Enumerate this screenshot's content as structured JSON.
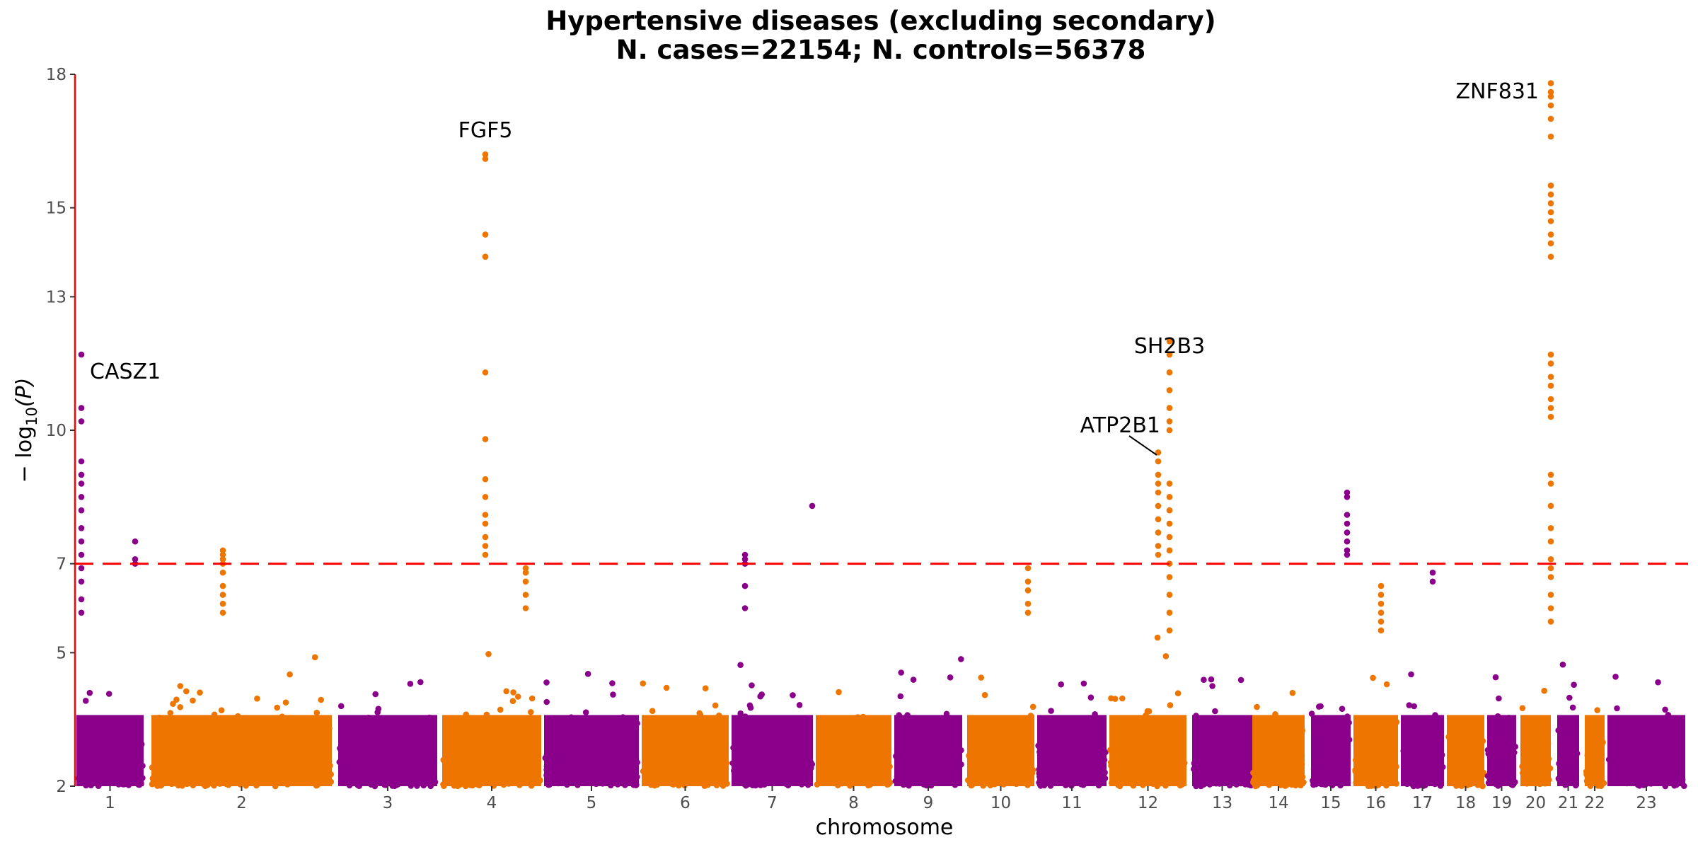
{
  "chart_data": {
    "type": "scatter",
    "subtype": "manhattan",
    "title": "Hypertensive diseases (excluding secondary)",
    "subtitle": "N. cases=22154; N. controls=56378",
    "xlabel": "chromosome",
    "ylabel_prefix": "− log",
    "ylabel_sub": "10",
    "ylabel_suffix": "(P)",
    "ylim": [
      2,
      18
    ],
    "yticks": [
      "2",
      "5",
      "7",
      "10",
      "13",
      "15",
      "18"
    ],
    "threshold": 7,
    "colors": {
      "purple": "#8B008B",
      "orange": "#EE7600",
      "threshold": "#FF0000",
      "axis": "#FF0000"
    },
    "chromosomes": [
      {
        "label": "1",
        "color": "purple"
      },
      {
        "label": "2",
        "color": "orange"
      },
      {
        "label": "3",
        "color": "purple"
      },
      {
        "label": "4",
        "color": "orange"
      },
      {
        "label": "5",
        "color": "purple"
      },
      {
        "label": "6",
        "color": "orange"
      },
      {
        "label": "7",
        "color": "purple"
      },
      {
        "label": "8",
        "color": "orange"
      },
      {
        "label": "9",
        "color": "purple"
      },
      {
        "label": "10",
        "color": "orange"
      },
      {
        "label": "11",
        "color": "purple"
      },
      {
        "label": "12",
        "color": "orange"
      },
      {
        "label": "13",
        "color": "purple"
      },
      {
        "label": "14",
        "color": "orange"
      },
      {
        "label": "15",
        "color": "purple"
      },
      {
        "label": "16",
        "color": "orange"
      },
      {
        "label": "17",
        "color": "purple"
      },
      {
        "label": "18",
        "color": "orange"
      },
      {
        "label": "19",
        "color": "purple"
      },
      {
        "label": "20",
        "color": "orange"
      },
      {
        "label": "21",
        "color": "purple"
      },
      {
        "label": "22",
        "color": "orange"
      },
      {
        "label": "23",
        "color": "purple"
      }
    ],
    "peaks": [
      {
        "chromosome": "1",
        "values": [
          11.7,
          10.5,
          10.2,
          9.3,
          9.0,
          8.8,
          8.5,
          8.2,
          7.8,
          7.5,
          7.2,
          6.9,
          6.6,
          6.2,
          5.9
        ]
      },
      {
        "chromosome": "1",
        "values": [
          7.5,
          7.1,
          7.0
        ]
      },
      {
        "chromosome": "2",
        "values": [
          7.3,
          7.2,
          7.1,
          7.0,
          6.8,
          6.5,
          6.3,
          6.1,
          5.9
        ]
      },
      {
        "chromosome": "4",
        "values": [
          16.2,
          16.1,
          14.4,
          13.9,
          13.9,
          11.3,
          9.8,
          8.9,
          8.5,
          8.1,
          7.9,
          7.6,
          7.4,
          7.2
        ]
      },
      {
        "chromosome": "4",
        "values": [
          6.9,
          6.8,
          6.6,
          6.3,
          6.0
        ]
      },
      {
        "chromosome": "7",
        "values": [
          7.2,
          7.1,
          7.0,
          6.5,
          6.0
        ]
      },
      {
        "chromosome": "7",
        "values": [
          8.3
        ]
      },
      {
        "chromosome": "10",
        "values": [
          6.9,
          6.6,
          6.4,
          6.1,
          5.9
        ]
      },
      {
        "chromosome": "12",
        "values": [
          9.5,
          9.3,
          9.0,
          8.8,
          8.6,
          8.3,
          8.0,
          7.7,
          7.4,
          7.2
        ]
      },
      {
        "chromosome": "12",
        "values": [
          12.0,
          11.7,
          11.3,
          10.9,
          10.5,
          10.2,
          10.0,
          8.8,
          8.5,
          8.2,
          7.9,
          7.6,
          7.3,
          7.0,
          6.7,
          6.3,
          5.9,
          5.5
        ]
      },
      {
        "chromosome": "15",
        "values": [
          8.6,
          8.5,
          8.1,
          7.9,
          7.7,
          7.5,
          7.3,
          7.2
        ]
      },
      {
        "chromosome": "16",
        "values": [
          6.5,
          6.3,
          6.1,
          5.9,
          5.7,
          5.5
        ]
      },
      {
        "chromosome": "17",
        "values": [
          6.8,
          6.6
        ]
      },
      {
        "chromosome": "20",
        "values": [
          17.8,
          17.6,
          17.5,
          17.3,
          17.0,
          16.6,
          15.5,
          15.3,
          15.1,
          14.9,
          14.7,
          14.4,
          14.2,
          13.9,
          11.7,
          11.5,
          11.2,
          11.0,
          10.7,
          10.5,
          10.3,
          9.0,
          8.8,
          8.3,
          7.8,
          7.5,
          7.1,
          6.9,
          6.7,
          6.3,
          6.0,
          5.7
        ]
      }
    ],
    "annotations": [
      {
        "label": "CASZ1",
        "chromosome": "1",
        "value": 11.7,
        "anchor": "start"
      },
      {
        "label": "FGF5",
        "chromosome": "4",
        "value": 16.2,
        "anchor": "middle"
      },
      {
        "label": "SH2B3",
        "chromosome": "12",
        "value": 12.0,
        "anchor": "middle"
      },
      {
        "label": "ATP2B1",
        "chromosome": "12",
        "value": 9.5,
        "anchor": "end"
      },
      {
        "label": "ZNF831",
        "chromosome": "20",
        "value": 17.8,
        "anchor": "end"
      }
    ]
  }
}
